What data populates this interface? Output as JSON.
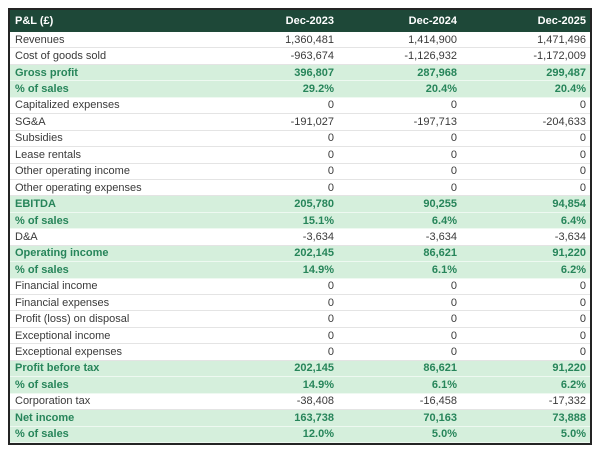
{
  "chart_data": {
    "type": "table",
    "title": "P&L (£)",
    "columns": [
      "Dec-2023",
      "Dec-2024",
      "Dec-2025"
    ],
    "rows": [
      {
        "label": "Revenues",
        "values": [
          "1,360,481",
          "1,414,900",
          "1,471,496"
        ],
        "highlight": false
      },
      {
        "label": "Cost of goods sold",
        "values": [
          "-963,674",
          "-1,126,932",
          "-1,172,009"
        ],
        "highlight": false
      },
      {
        "label": "Gross profit",
        "values": [
          "396,807",
          "287,968",
          "299,487"
        ],
        "highlight": true
      },
      {
        "label": "% of sales",
        "values": [
          "29.2%",
          "20.4%",
          "20.4%"
        ],
        "highlight": true
      },
      {
        "label": "Capitalized expenses",
        "values": [
          "0",
          "0",
          "0"
        ],
        "highlight": false
      },
      {
        "label": "SG&A",
        "values": [
          "-191,027",
          "-197,713",
          "-204,633"
        ],
        "highlight": false
      },
      {
        "label": "Subsidies",
        "values": [
          "0",
          "0",
          "0"
        ],
        "highlight": false
      },
      {
        "label": "Lease rentals",
        "values": [
          "0",
          "0",
          "0"
        ],
        "highlight": false
      },
      {
        "label": "Other operating income",
        "values": [
          "0",
          "0",
          "0"
        ],
        "highlight": false
      },
      {
        "label": "Other operating expenses",
        "values": [
          "0",
          "0",
          "0"
        ],
        "highlight": false
      },
      {
        "label": "EBITDA",
        "values": [
          "205,780",
          "90,255",
          "94,854"
        ],
        "highlight": true
      },
      {
        "label": "% of sales",
        "values": [
          "15.1%",
          "6.4%",
          "6.4%"
        ],
        "highlight": true
      },
      {
        "label": "D&A",
        "values": [
          "-3,634",
          "-3,634",
          "-3,634"
        ],
        "highlight": false
      },
      {
        "label": "Operating income",
        "values": [
          "202,145",
          "86,621",
          "91,220"
        ],
        "highlight": true
      },
      {
        "label": "% of sales",
        "values": [
          "14.9%",
          "6.1%",
          "6.2%"
        ],
        "highlight": true
      },
      {
        "label": "Financial income",
        "values": [
          "0",
          "0",
          "0"
        ],
        "highlight": false
      },
      {
        "label": "Financial expenses",
        "values": [
          "0",
          "0",
          "0"
        ],
        "highlight": false
      },
      {
        "label": "Profit (loss) on disposal",
        "values": [
          "0",
          "0",
          "0"
        ],
        "highlight": false
      },
      {
        "label": "Exceptional income",
        "values": [
          "0",
          "0",
          "0"
        ],
        "highlight": false
      },
      {
        "label": "Exceptional expenses",
        "values": [
          "0",
          "0",
          "0"
        ],
        "highlight": false
      },
      {
        "label": "Profit before tax",
        "values": [
          "202,145",
          "86,621",
          "91,220"
        ],
        "highlight": true
      },
      {
        "label": "% of sales",
        "values": [
          "14.9%",
          "6.1%",
          "6.2%"
        ],
        "highlight": true
      },
      {
        "label": "Corporation tax",
        "values": [
          "-38,408",
          "-16,458",
          "-17,332"
        ],
        "highlight": false
      },
      {
        "label": "Net income",
        "values": [
          "163,738",
          "70,163",
          "73,888"
        ],
        "highlight": true
      },
      {
        "label": "% of sales",
        "values": [
          "12.0%",
          "5.0%",
          "5.0%"
        ],
        "highlight": true
      }
    ]
  },
  "colors": {
    "header_bg": "#1e4838",
    "header_text": "#ffffff",
    "highlight_bg": "#d5efdc",
    "highlight_text": "#27855a",
    "body_text": "#3a3a3a",
    "outer_border": "#242424",
    "row_divider": "#e4e4e4"
  }
}
